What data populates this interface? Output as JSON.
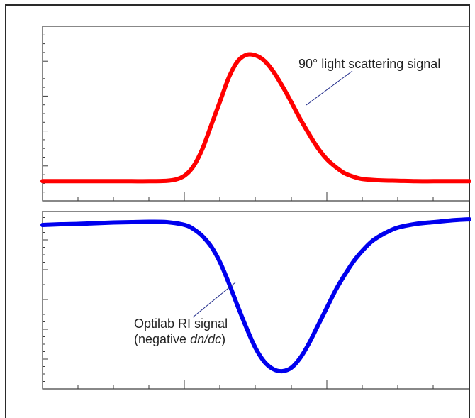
{
  "chart_data": [
    {
      "type": "line",
      "title": "",
      "xlabel": "",
      "ylabel": "",
      "grid": false,
      "xlim": [
        0,
        12
      ],
      "ylim": [
        0,
        4
      ],
      "series": [
        {
          "name": "90° light scattering signal",
          "color": "#ff0000",
          "x": [
            0,
            0.5,
            1,
            1.5,
            2,
            2.5,
            3,
            3.5,
            3.75,
            4,
            4.25,
            4.5,
            4.75,
            5,
            5.25,
            5.5,
            5.75,
            6,
            6.25,
            6.5,
            6.75,
            7,
            7.25,
            7.5,
            7.75,
            8,
            8.25,
            8.5,
            8.75,
            9,
            9.5,
            10,
            10.5,
            11,
            11.5,
            12
          ],
          "y": [
            0.45,
            0.45,
            0.45,
            0.45,
            0.45,
            0.45,
            0.45,
            0.46,
            0.49,
            0.58,
            0.8,
            1.2,
            1.75,
            2.3,
            2.85,
            3.21,
            3.35,
            3.33,
            3.2,
            2.95,
            2.62,
            2.25,
            1.87,
            1.52,
            1.2,
            0.95,
            0.77,
            0.63,
            0.55,
            0.5,
            0.47,
            0.46,
            0.45,
            0.45,
            0.45,
            0.45
          ]
        }
      ],
      "annotations": [
        {
          "text": "90° light scattering signal"
        }
      ]
    },
    {
      "type": "line",
      "title": "",
      "xlabel": "",
      "ylabel": "",
      "grid": false,
      "xlim": [
        0,
        12
      ],
      "ylim": [
        0,
        5
      ],
      "series": [
        {
          "name": "Optilab RI signal",
          "color": "#0000ee",
          "x": [
            0,
            0.5,
            1,
            1.5,
            2,
            2.5,
            3,
            3.5,
            4,
            4.25,
            4.5,
            4.75,
            5,
            5.25,
            5.5,
            5.75,
            6,
            6.25,
            6.5,
            6.75,
            7,
            7.25,
            7.5,
            7.75,
            8,
            8.25,
            8.5,
            8.75,
            9,
            9.25,
            9.5,
            9.75,
            10,
            10.5,
            11,
            11.5,
            12
          ],
          "y": [
            4.62,
            4.64,
            4.65,
            4.67,
            4.69,
            4.7,
            4.71,
            4.7,
            4.62,
            4.5,
            4.3,
            4.0,
            3.55,
            2.95,
            2.3,
            1.68,
            1.13,
            0.75,
            0.55,
            0.5,
            0.6,
            0.88,
            1.3,
            1.8,
            2.3,
            2.8,
            3.22,
            3.6,
            3.9,
            4.15,
            4.32,
            4.45,
            4.55,
            4.65,
            4.7,
            4.75,
            4.78
          ]
        }
      ],
      "annotations": [
        {
          "text": "Optilab RI signal",
          "line2_prefix": "(negative ",
          "line2_italic": "dn/dc",
          "line2_suffix": ")"
        }
      ]
    }
  ]
}
